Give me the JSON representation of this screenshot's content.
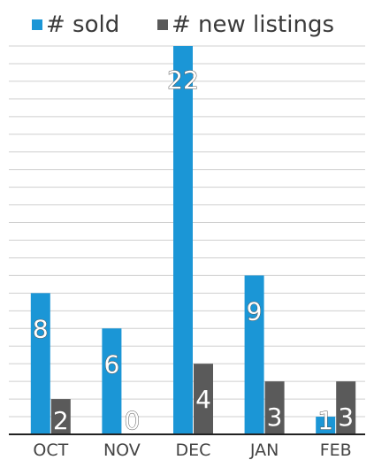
{
  "chart_data": {
    "type": "bar",
    "categories": [
      "OCT",
      "NOV",
      "DEC",
      "JAN",
      "FEB"
    ],
    "series": [
      {
        "name": "# sold",
        "values": [
          8,
          6,
          22,
          9,
          1
        ],
        "color": "#1b96d6"
      },
      {
        "name": "# new listings",
        "values": [
          2,
          0,
          4,
          3,
          3
        ],
        "color": "#5a5a5a"
      }
    ],
    "ylim": [
      0,
      22
    ],
    "grid": true,
    "legend": "top"
  }
}
